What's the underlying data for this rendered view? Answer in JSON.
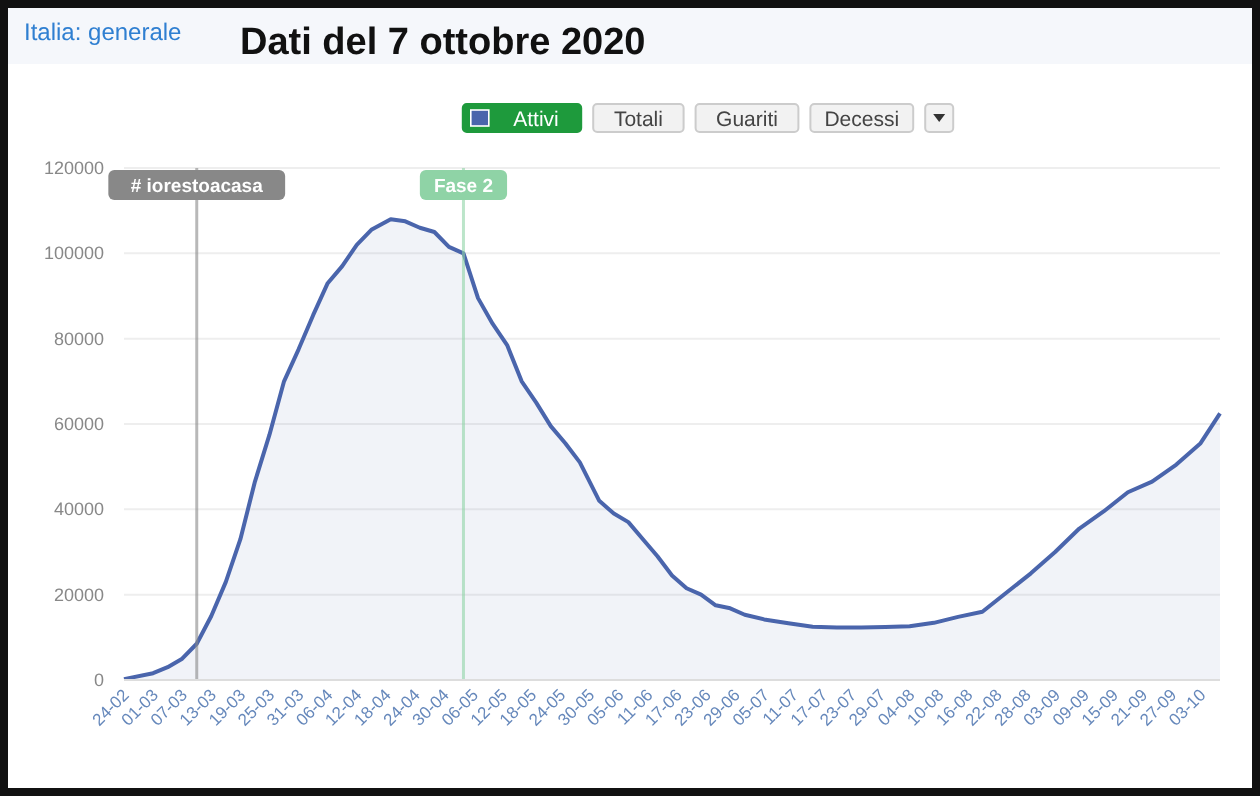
{
  "chart_data": {
    "type": "area",
    "title": "Dati del 7 ottobre 2020",
    "subtitle": "Italia: generale",
    "annotations": [
      "Totali",
      "Guariti",
      "Decessi"
    ],
    "legend": "top",
    "x": [
      "2020-02-24",
      "2020-03-01",
      "2020-03-04",
      "2020-03-07",
      "2020-03-10",
      "2020-03-13",
      "2020-03-16",
      "2020-03-19",
      "2020-03-22",
      "2020-03-25",
      "2020-03-28",
      "2020-03-31",
      "2020-04-03",
      "2020-04-06",
      "2020-04-09",
      "2020-04-12",
      "2020-04-15",
      "2020-04-19",
      "2020-04-22",
      "2020-04-25",
      "2020-04-28",
      "2020-05-01",
      "2020-05-04",
      "2020-05-07",
      "2020-05-10",
      "2020-05-13",
      "2020-05-16",
      "2020-05-19",
      "2020-05-22",
      "2020-05-25",
      "2020-05-28",
      "2020-06-01",
      "2020-06-04",
      "2020-06-07",
      "2020-06-10",
      "2020-06-13",
      "2020-06-16",
      "2020-06-19",
      "2020-06-22",
      "2020-06-25",
      "2020-06-28",
      "2020-07-01",
      "2020-07-05",
      "2020-07-10",
      "2020-07-15",
      "2020-07-20",
      "2020-07-25",
      "2020-07-30",
      "2020-08-04",
      "2020-08-09",
      "2020-08-14",
      "2020-08-19",
      "2020-08-24",
      "2020-08-29",
      "2020-09-03",
      "2020-09-08",
      "2020-09-13",
      "2020-09-18",
      "2020-09-23",
      "2020-09-28",
      "2020-10-03",
      "2020-10-07"
    ],
    "series": [
      {
        "name": "Attivi",
        "color": "#4a65ac",
        "values": [
          200,
          1600,
          3000,
          5000,
          8500,
          15000,
          23000,
          33000,
          46500,
          57500,
          70000,
          77500,
          85500,
          93000,
          97000,
          102000,
          105500,
          108000,
          107500,
          106000,
          105000,
          101500,
          100000,
          89500,
          83500,
          78500,
          70000,
          65000,
          59500,
          55500,
          51000,
          42000,
          39000,
          37000,
          33000,
          29000,
          24500,
          21500,
          20000,
          17500,
          16800,
          15300,
          14200,
          13300,
          12500,
          12300,
          12300,
          12400,
          12600,
          13400,
          14800,
          16000,
          20500,
          25000,
          30000,
          35500,
          39500,
          44000,
          46500,
          50500,
          55500,
          62500
        ]
      }
    ],
    "xlim": [
      "2020-02-24",
      "2020-10-07"
    ],
    "xticks": [
      {
        "value": "2020-02-24",
        "label": "24-02"
      },
      {
        "value": "2020-03-01",
        "label": "01-03"
      },
      {
        "value": "2020-03-07",
        "label": "07-03"
      },
      {
        "value": "2020-03-13",
        "label": "13-03"
      },
      {
        "value": "2020-03-19",
        "label": "19-03"
      },
      {
        "value": "2020-03-25",
        "label": "25-03"
      },
      {
        "value": "2020-03-31",
        "label": "31-03"
      },
      {
        "value": "2020-04-06",
        "label": "06-04"
      },
      {
        "value": "2020-04-12",
        "label": "12-04"
      },
      {
        "value": "2020-04-18",
        "label": "18-04"
      },
      {
        "value": "2020-04-24",
        "label": "24-04"
      },
      {
        "value": "2020-04-30",
        "label": "30-04"
      },
      {
        "value": "2020-05-06",
        "label": "06-05"
      },
      {
        "value": "2020-05-12",
        "label": "12-05"
      },
      {
        "value": "2020-05-18",
        "label": "18-05"
      },
      {
        "value": "2020-05-24",
        "label": "24-05"
      },
      {
        "value": "2020-05-30",
        "label": "30-05"
      },
      {
        "value": "2020-06-05",
        "label": "05-06"
      },
      {
        "value": "2020-06-11",
        "label": "11-06"
      },
      {
        "value": "2020-06-17",
        "label": "17-06"
      },
      {
        "value": "2020-06-23",
        "label": "23-06"
      },
      {
        "value": "2020-06-29",
        "label": "29-06"
      },
      {
        "value": "2020-07-05",
        "label": "05-07"
      },
      {
        "value": "2020-07-11",
        "label": "11-07"
      },
      {
        "value": "2020-07-17",
        "label": "17-07"
      },
      {
        "value": "2020-07-23",
        "label": "23-07"
      },
      {
        "value": "2020-07-29",
        "label": "29-07"
      },
      {
        "value": "2020-08-04",
        "label": "04-08"
      },
      {
        "value": "2020-08-10",
        "label": "10-08"
      },
      {
        "value": "2020-08-16",
        "label": "16-08"
      },
      {
        "value": "2020-08-22",
        "label": "22-08"
      },
      {
        "value": "2020-08-28",
        "label": "28-08"
      },
      {
        "value": "2020-09-03",
        "label": "03-09"
      },
      {
        "value": "2020-09-09",
        "label": "09-09"
      },
      {
        "value": "2020-09-15",
        "label": "15-09"
      },
      {
        "value": "2020-09-21",
        "label": "21-09"
      },
      {
        "value": "2020-09-27",
        "label": "27-09"
      },
      {
        "value": "2020-10-03",
        "label": "03-10"
      }
    ],
    "ylim": [
      0,
      120000
    ],
    "yticks": [
      0,
      20000,
      40000,
      60000,
      80000,
      100000,
      120000
    ],
    "grid": "y",
    "ref_lines": [
      {
        "axis": "x",
        "value": "2020-03-10",
        "label": "# iorestoacasa",
        "color": "#888888"
      },
      {
        "axis": "x",
        "value": "2020-05-04",
        "label": "Fase 2",
        "color": "#8fd3a6"
      }
    ]
  }
}
